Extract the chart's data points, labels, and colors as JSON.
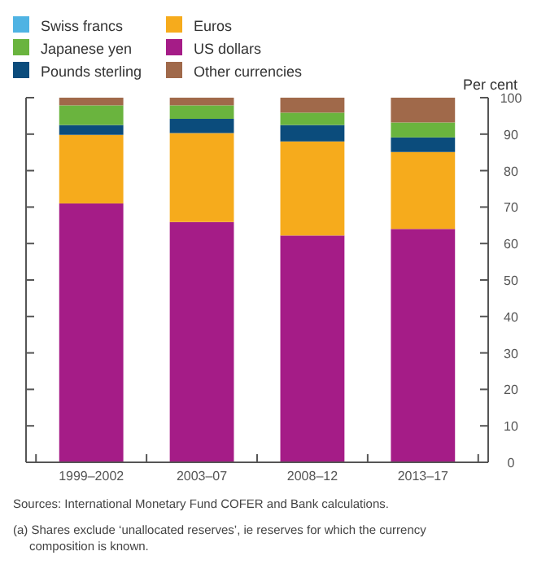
{
  "chart_data": {
    "type": "bar",
    "stacked": true,
    "legend": "top",
    "ylabel": "Per cent",
    "categories": [
      "1999–2002",
      "2003–07",
      "2008–12",
      "2013–17"
    ],
    "series": [
      {
        "name": "US dollars",
        "color": "#a51c87",
        "values": [
          71,
          65.9,
          62.2,
          64
        ]
      },
      {
        "name": "Euros",
        "color": "#f6ab1c",
        "values": [
          18.8,
          24.4,
          25.8,
          21.1
        ]
      },
      {
        "name": "Pounds sterling",
        "color": "#0b4c7c",
        "values": [
          2.7,
          3.9,
          4.5,
          4
        ]
      },
      {
        "name": "Japanese yen",
        "color": "#6ab43e",
        "values": [
          5.4,
          3.7,
          3.4,
          4.1
        ]
      },
      {
        "name": "Swiss francs",
        "color": "#4fb3e3",
        "values": [
          null,
          null,
          null,
          null
        ]
      },
      {
        "name": "Other currencies",
        "color": "#a0694a",
        "values": [
          2.1,
          2.1,
          4.1,
          6.8
        ]
      }
    ],
    "ylim": [
      0,
      100
    ],
    "yticks": [
      0,
      10,
      20,
      30,
      40,
      50,
      60,
      70,
      80,
      90,
      100
    ],
    "annotations": [
      "Sources: International Monetary Fund COFER and Bank calculations.",
      "(a) Shares exclude ‘unallocated reserves’, ie reserves for which the currency composition is known."
    ]
  }
}
